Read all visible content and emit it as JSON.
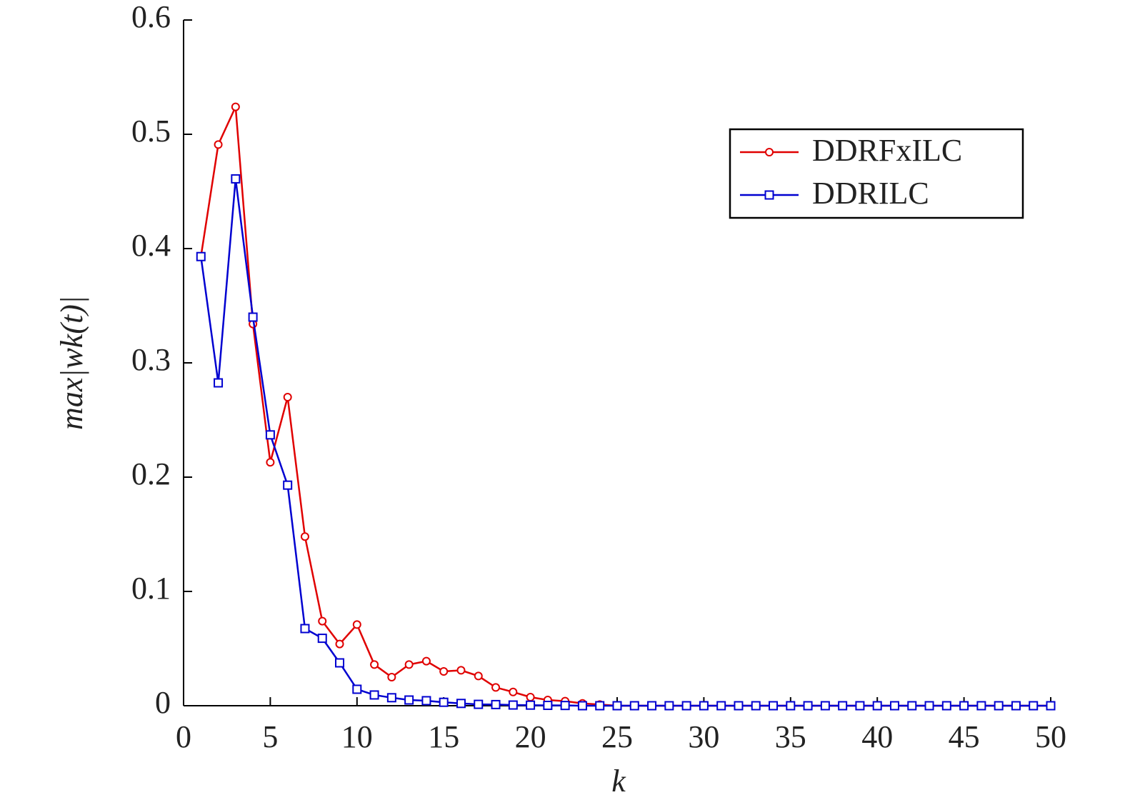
{
  "chart_data": {
    "type": "line",
    "xlabel": "k",
    "ylabel": "max|wk(t)|",
    "x": [
      1,
      2,
      3,
      4,
      5,
      6,
      7,
      8,
      9,
      10,
      11,
      12,
      13,
      14,
      15,
      16,
      17,
      18,
      19,
      20,
      21,
      22,
      23,
      24,
      25,
      26,
      27,
      28,
      29,
      30,
      31,
      32,
      33,
      34,
      35,
      36,
      37,
      38,
      39,
      40,
      41,
      42,
      43,
      44,
      45,
      46,
      47,
      48,
      49,
      50
    ],
    "series": [
      {
        "name": "DDRFxILC",
        "color": "#e00000",
        "marker": "circle",
        "values": [
          0.393,
          0.491,
          0.524,
          0.334,
          0.213,
          0.27,
          0.148,
          0.074,
          0.054,
          0.071,
          0.036,
          0.025,
          0.036,
          0.039,
          0.03,
          0.031,
          0.026,
          0.016,
          0.012,
          0.0075,
          0.005,
          0.004,
          0.002,
          0.001,
          0,
          0,
          0,
          0,
          0,
          0,
          0,
          0,
          0,
          0,
          0,
          0,
          0,
          0,
          0,
          0,
          0,
          0,
          0,
          0,
          0,
          0,
          0,
          0,
          0,
          0
        ]
      },
      {
        "name": "DDRILC",
        "color": "#0000d0",
        "marker": "square",
        "values": [
          0.393,
          0.2825,
          0.461,
          0.34,
          0.237,
          0.193,
          0.0675,
          0.059,
          0.0375,
          0.0144,
          0.0094,
          0.007,
          0.005,
          0.0044,
          0.003,
          0.002,
          0.0012,
          0.001,
          0.0006,
          0.0005,
          0.0003,
          0.0002,
          0,
          0,
          0,
          0,
          0,
          0,
          0,
          0,
          0,
          0,
          0,
          0,
          0,
          0,
          0,
          0,
          0,
          0,
          0,
          0,
          0,
          0,
          0,
          0,
          0,
          0,
          0,
          0
        ]
      }
    ],
    "xlim": [
      0,
      50
    ],
    "xticks": [
      0,
      5,
      10,
      15,
      20,
      25,
      30,
      35,
      40,
      45,
      50
    ],
    "ylim": [
      0,
      0.6
    ],
    "yticks": [
      0,
      0.1,
      0.2,
      0.3,
      0.4,
      0.5,
      0.6
    ],
    "legend": "northeast"
  }
}
